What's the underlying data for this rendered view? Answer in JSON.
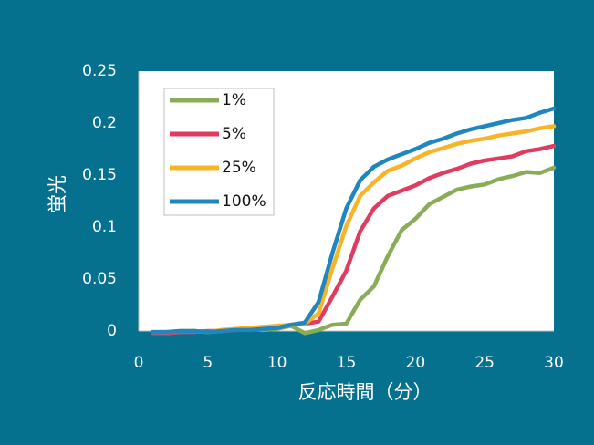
{
  "chart_data": {
    "type": "line",
    "xlabel": "反応時間（分）",
    "ylabel": "蛍光",
    "xlim": [
      0,
      30
    ],
    "ylim": [
      0,
      0.25
    ],
    "x_ticks": [
      "0",
      "5",
      "10",
      "15",
      "20",
      "25",
      "30"
    ],
    "y_ticks": [
      "0",
      "0.05",
      "0.1",
      "0.15",
      "0.2",
      "0.25"
    ],
    "grid": false,
    "legend_position": "top-left",
    "colors": {
      "background": "#06708f",
      "plot_area": "#ffffff",
      "axis": "#bfbfbf"
    },
    "x": [
      1,
      2,
      3,
      4,
      5,
      6,
      7,
      8,
      9,
      10,
      11,
      12,
      13,
      14,
      15,
      16,
      17,
      18,
      19,
      20,
      21,
      22,
      23,
      24,
      25,
      26,
      27,
      28,
      29,
      30
    ],
    "series": [
      {
        "name": "1%",
        "color": "#8aac56",
        "values": [
          -0.001,
          -0.002,
          -0.001,
          0.0,
          -0.001,
          0.0,
          0.001,
          0.002,
          0.001,
          0.002,
          0.005,
          -0.002,
          0.001,
          0.006,
          0.007,
          0.03,
          0.043,
          0.072,
          0.097,
          0.108,
          0.122,
          0.129,
          0.136,
          0.139,
          0.141,
          0.146,
          0.149,
          0.153,
          0.152,
          0.157
        ]
      },
      {
        "name": "5%",
        "color": "#e03c60",
        "values": [
          -0.002,
          -0.002,
          -0.001,
          -0.001,
          0.0,
          0.0,
          0.001,
          0.002,
          0.002,
          0.004,
          0.006,
          0.007,
          0.009,
          0.033,
          0.058,
          0.096,
          0.118,
          0.13,
          0.135,
          0.14,
          0.147,
          0.152,
          0.156,
          0.161,
          0.164,
          0.166,
          0.168,
          0.173,
          0.175,
          0.178
        ]
      },
      {
        "name": "25%",
        "color": "#f9b327",
        "values": [
          -0.001,
          -0.001,
          0.0,
          0.0,
          -0.001,
          0.001,
          0.002,
          0.003,
          0.004,
          0.005,
          0.006,
          0.007,
          0.017,
          0.06,
          0.101,
          0.13,
          0.143,
          0.154,
          0.159,
          0.166,
          0.172,
          0.176,
          0.18,
          0.183,
          0.185,
          0.188,
          0.19,
          0.192,
          0.195,
          0.197
        ]
      },
      {
        "name": "100%",
        "color": "#1f86c0",
        "values": [
          -0.001,
          -0.001,
          0.0,
          0.0,
          -0.001,
          0.0,
          0.001,
          0.001,
          0.002,
          0.003,
          0.006,
          0.008,
          0.028,
          0.075,
          0.118,
          0.145,
          0.158,
          0.165,
          0.17,
          0.175,
          0.181,
          0.185,
          0.19,
          0.194,
          0.197,
          0.2,
          0.203,
          0.205,
          0.21,
          0.214
        ]
      }
    ]
  }
}
